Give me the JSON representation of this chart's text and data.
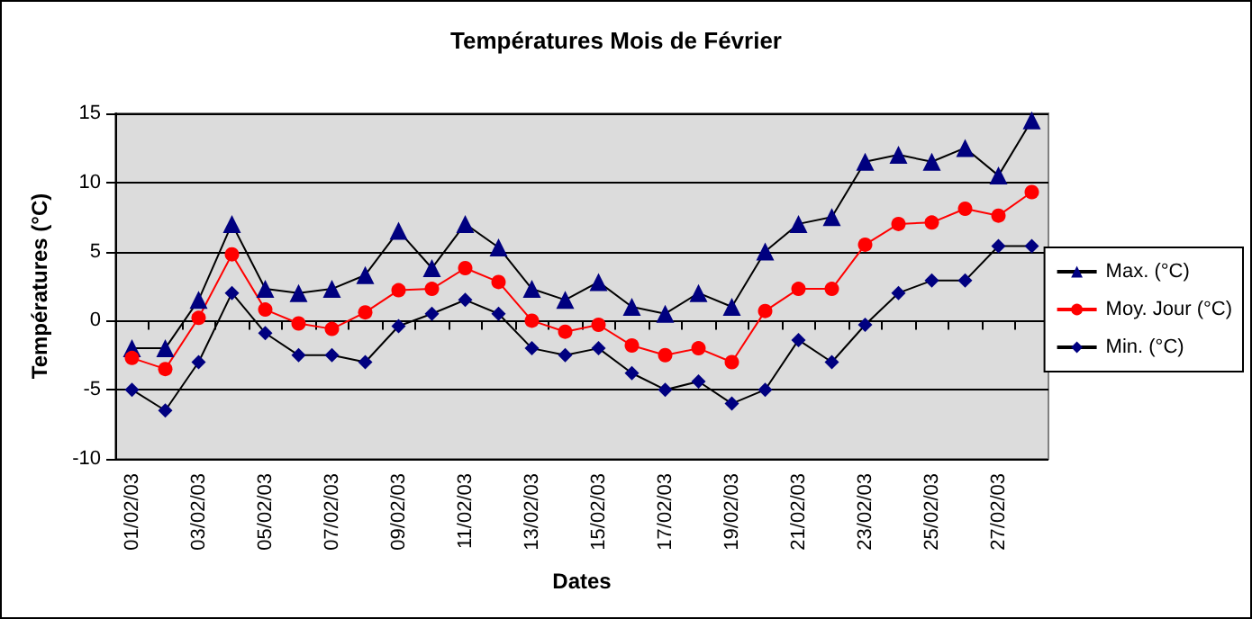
{
  "chart_data": {
    "type": "line",
    "title": "Températures Mois de Février",
    "xlabel": "Dates",
    "ylabel": "Températures (°C)",
    "categories": [
      "01/02/03",
      null,
      "03/02/03",
      null,
      "05/02/03",
      null,
      "07/02/03",
      null,
      "09/02/03",
      null,
      "11/02/03",
      null,
      "13/02/03",
      null,
      "15/02/03",
      null,
      "17/02/03",
      null,
      "19/02/03",
      null,
      "21/02/03",
      null,
      "23/02/03",
      null,
      "25/02/03",
      null,
      "27/02/03",
      null
    ],
    "series": [
      {
        "name": "Max. (°C)",
        "color": "#000080",
        "marker": "triangle",
        "values": [
          -2,
          -2,
          1.5,
          7,
          2.3,
          2,
          2.3,
          3.3,
          6.5,
          3.8,
          7,
          5.3,
          2.3,
          1.5,
          2.8,
          1,
          0.5,
          2,
          1,
          5,
          7,
          7.5,
          11.5,
          12,
          11.5,
          12.5,
          10.5,
          14.5
        ]
      },
      {
        "name": "Moy. Jour (°C)",
        "color": "#ff0000",
        "marker": "circle",
        "values": [
          -2.7,
          -3.5,
          0.2,
          4.8,
          0.8,
          -0.2,
          -0.6,
          0.6,
          2.2,
          2.3,
          3.8,
          2.8,
          0,
          -0.8,
          -0.3,
          -1.8,
          -2.5,
          -2,
          -3,
          0.7,
          2.3,
          2.3,
          5.5,
          7,
          7.1,
          8.1,
          7.6,
          9.3
        ]
      },
      {
        "name": "Min. (°C)",
        "color": "#000080",
        "marker": "diamond",
        "values": [
          -5,
          -6.5,
          -3,
          2,
          -0.9,
          -2.5,
          -2.5,
          -3,
          -0.4,
          0.5,
          1.5,
          0.5,
          -2,
          -2.5,
          -2,
          -3.8,
          -5,
          -4.4,
          -6,
          -5,
          -1.4,
          -3,
          -0.3,
          2,
          2.9,
          2.9,
          5.4,
          5.4
        ]
      }
    ],
    "ylim": [
      -10,
      15
    ],
    "yticks": [
      -10,
      -5,
      0,
      5,
      10,
      15
    ],
    "grid": "y",
    "legend": "right"
  }
}
